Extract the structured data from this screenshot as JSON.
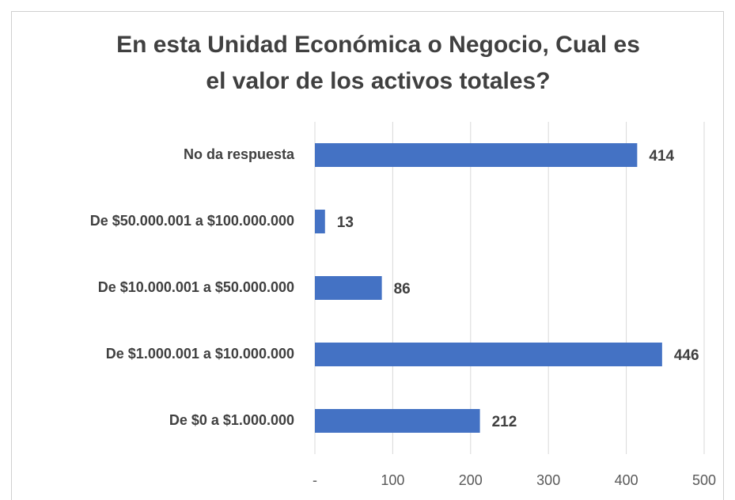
{
  "chart_data": {
    "type": "bar",
    "orientation": "horizontal",
    "title": [
      "En esta Unidad Económica o Negocio, Cual es",
      "el valor de los activos totales?"
    ],
    "categories": [
      "No da respuesta",
      "De $50.000.001 a $100.000.000",
      "De $10.000.001 a $50.000.000",
      "De $1.000.001 a $10.000.000",
      "De $0 a $1.000.000"
    ],
    "values": [
      414,
      13,
      86,
      446,
      212
    ],
    "color": "#4472c4",
    "xlim": [
      0,
      500
    ],
    "xticks": [
      {
        "value": 0,
        "label": "-"
      },
      100,
      200,
      300,
      400,
      500
    ],
    "grid": true
  }
}
